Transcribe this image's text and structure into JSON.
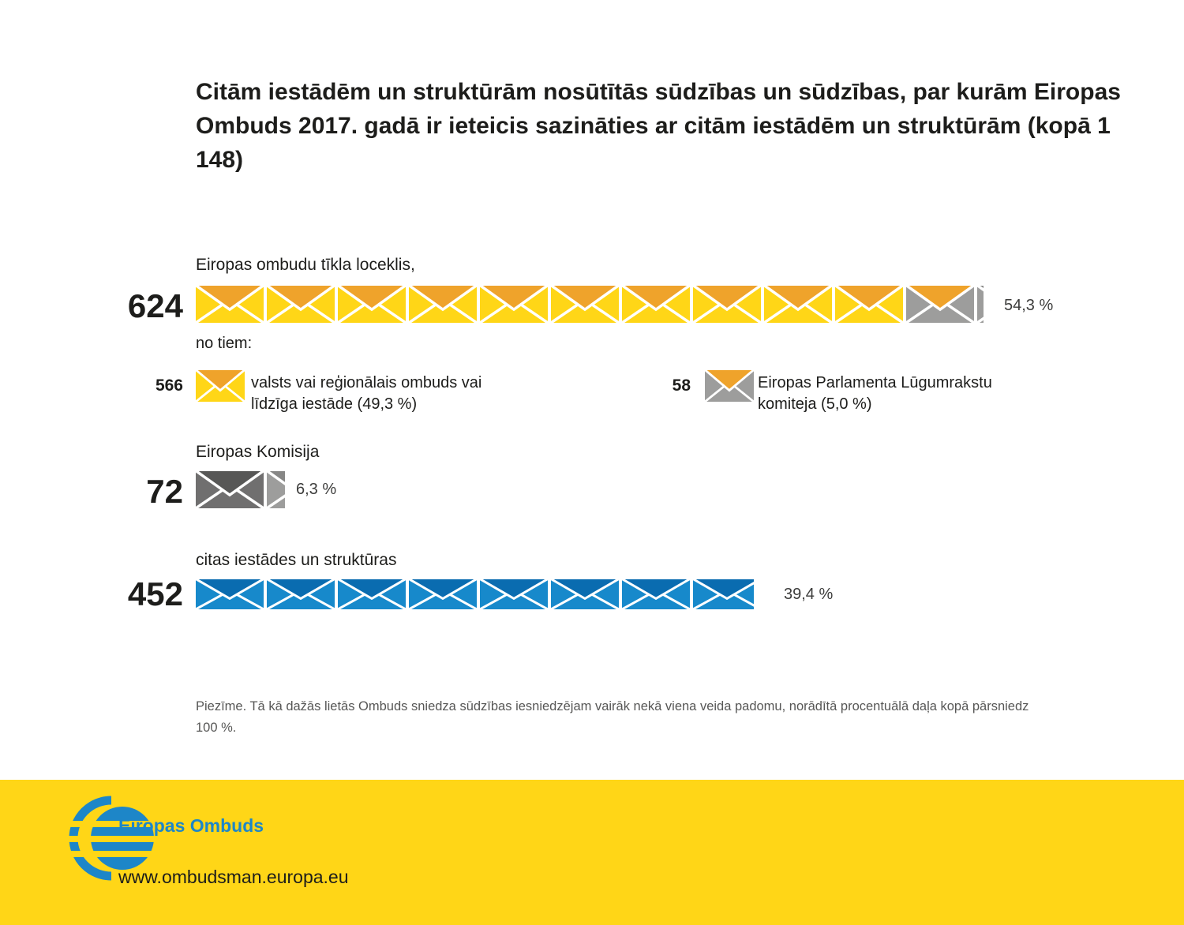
{
  "title": "Citām iestādēm un struktūrām nosūtītās sūdzības un sūdzības, par kurām Eiropas Ombuds 2017. gadā ir ieteicis sazināties ar citām iestādēm un struktūrām (kopā 1 148)",
  "rows": {
    "network": {
      "label": "Eiropas ombudu tīkla loceklis,",
      "value": "624",
      "percent": "54,3 %"
    },
    "breakdown_intro": "no tiem:",
    "ombudsman": {
      "value": "566",
      "label": "valsts vai reģionālais ombuds vai līdzīga iestāde (49,3 %)"
    },
    "petitions": {
      "value": "58",
      "label": "Eiropas Parlamenta Lūgumrakstu komiteja (5,0 %)"
    },
    "commission": {
      "label": "Eiropas Komisija",
      "value": "72",
      "percent": "6,3 %"
    },
    "other": {
      "label": "citas iestādes un struktūras",
      "value": "452",
      "percent": "39,4 %"
    }
  },
  "note": "Piezīme. Tā kā dažās lietās Ombuds sniedza sūdzības iesniedzējam vairāk nekā viena veida padomu, norādītā procentuālā daļa kopā pārsniedz 100 %.",
  "footer": {
    "org": "Eiropas Ombuds",
    "url": "www.ombudsman.europa.eu"
  },
  "colors": {
    "yellow": {
      "body": "#FFD617",
      "flap": "#EFA32B"
    },
    "grayOrange": {
      "body": "#9D9D9C",
      "flap": "#EFA32B"
    },
    "dark": {
      "body": "#706F6F",
      "flap": "#575756"
    },
    "gray": {
      "body": "#9D9D9C",
      "flap": "#878786"
    },
    "blue": {
      "body": "#1789CB",
      "flap": "#0A6CB0"
    },
    "accent_yellow": "#FFD617",
    "brand_blue": "#1D86C8"
  },
  "strips": {
    "row1": [
      {
        "style": "yellow",
        "count": 10
      },
      {
        "style": "grayOrange",
        "count": 1
      },
      {
        "style": "gray",
        "count": 1,
        "fraction": 0.09
      }
    ],
    "row2": [
      {
        "style": "dark",
        "count": 1
      },
      {
        "style": "gray",
        "count": 1,
        "fraction": 0.27
      }
    ],
    "row3": [
      {
        "style": "blue",
        "count": 7
      },
      {
        "style": "blue",
        "count": 1,
        "fraction": 0.9
      }
    ],
    "legend566": [
      {
        "style": "yellow",
        "count": 1
      }
    ],
    "legend58": [
      {
        "style": "grayOrange",
        "count": 1
      }
    ]
  },
  "chart_data": {
    "type": "bar",
    "subtype": "pictogram",
    "title": "Citām iestādēm un struktūrām nosūtītās sūdzības un sūdzības, par kurām Eiropas Ombuds 2017. gadā ir ieteicis sazināties ar citām iestādēm un struktūrām (kopā 1 148)",
    "total": 1148,
    "categories": [
      "Eiropas ombudu tīkla loceklis",
      "Eiropas Komisija",
      "citas iestādes un struktūras"
    ],
    "values": [
      624,
      72,
      452
    ],
    "percents": [
      54.3,
      6.3,
      39.4
    ],
    "breakdown_of_first": [
      {
        "label": "valsts vai reģionālais ombuds vai līdzīga iestāde",
        "value": 566,
        "percent": 49.3
      },
      {
        "label": "Eiropas Parlamenta Lūgumrakstu komiteja",
        "value": 58,
        "percent": 5.0
      }
    ],
    "legend_position": "inline",
    "note": "Procentuālā daļa kopā pārsniedz 100 %, jo dažās lietās sniegti vairāki padomi"
  }
}
